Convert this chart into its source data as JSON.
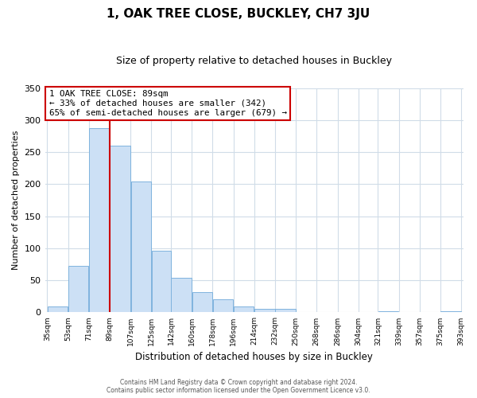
{
  "title": "1, OAK TREE CLOSE, BUCKLEY, CH7 3JU",
  "subtitle": "Size of property relative to detached houses in Buckley",
  "xlabel": "Distribution of detached houses by size in Buckley",
  "ylabel": "Number of detached properties",
  "bar_left_edges": [
    35,
    53,
    71,
    89,
    107,
    125,
    142,
    160,
    178,
    196,
    214,
    232,
    250,
    268,
    286,
    304,
    321,
    339,
    357,
    375
  ],
  "bar_heights": [
    9,
    73,
    287,
    260,
    204,
    96,
    54,
    31,
    21,
    9,
    5,
    5,
    0,
    0,
    0,
    0,
    2,
    0,
    0,
    2
  ],
  "bar_widths": [
    18,
    18,
    18,
    18,
    18,
    17,
    18,
    18,
    18,
    18,
    18,
    18,
    18,
    18,
    18,
    17,
    18,
    18,
    18,
    18
  ],
  "tick_labels": [
    "35sqm",
    "53sqm",
    "71sqm",
    "89sqm",
    "107sqm",
    "125sqm",
    "142sqm",
    "160sqm",
    "178sqm",
    "196sqm",
    "214sqm",
    "232sqm",
    "250sqm",
    "268sqm",
    "286sqm",
    "304sqm",
    "321sqm",
    "339sqm",
    "357sqm",
    "375sqm",
    "393sqm"
  ],
  "bar_color": "#cce0f5",
  "bar_edge_color": "#7fb3de",
  "vline_x": 89,
  "vline_color": "#cc0000",
  "ylim": [
    0,
    350
  ],
  "yticks": [
    0,
    50,
    100,
    150,
    200,
    250,
    300,
    350
  ],
  "annotation_title": "1 OAK TREE CLOSE: 89sqm",
  "annotation_line2": "← 33% of detached houses are smaller (342)",
  "annotation_line3": "65% of semi-detached houses are larger (679) →",
  "annotation_box_facecolor": "#ffffff",
  "annotation_box_edgecolor": "#cc0000",
  "footer1": "Contains HM Land Registry data © Crown copyright and database right 2024.",
  "footer2": "Contains public sector information licensed under the Open Government Licence v3.0.",
  "bg_color": "#ffffff",
  "plot_bg_color": "#ffffff",
  "grid_color": "#d0dce8"
}
